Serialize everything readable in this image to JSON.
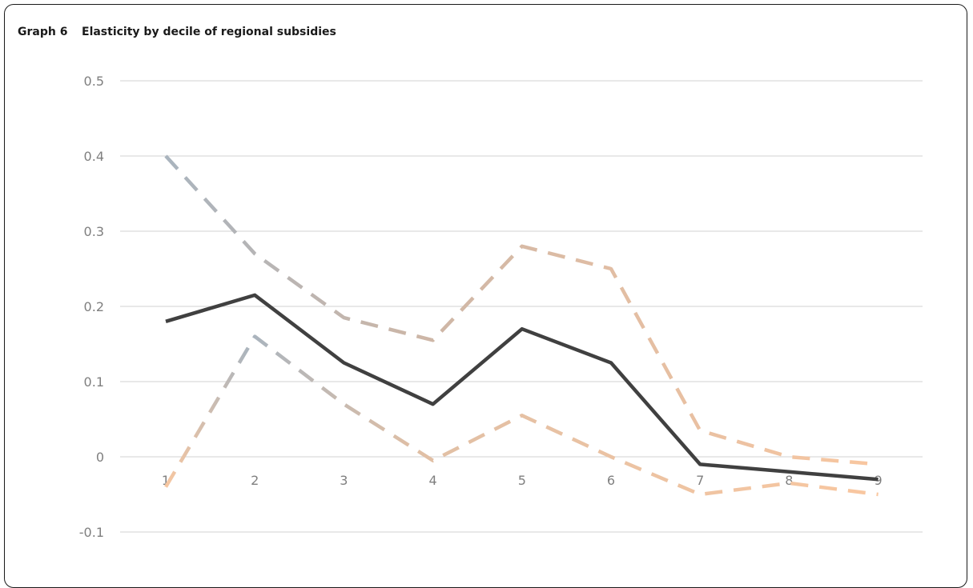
{
  "figure": {
    "number": "Graph 6",
    "title": "Elasticity by decile of regional subsidies"
  },
  "chart_data": {
    "type": "line",
    "x": [
      1,
      2,
      3,
      4,
      5,
      6,
      7,
      8,
      9
    ],
    "ylim": [
      -0.1,
      0.5
    ],
    "yticks": [
      "0.5",
      "0.4",
      "0.3",
      "0.2",
      "0.1",
      "0",
      "-0.1"
    ],
    "xticks": [
      "1",
      "2",
      "3",
      "4",
      "5",
      "6",
      "7",
      "8",
      "9"
    ],
    "grid": true,
    "legend": "none",
    "series": [
      {
        "values": [
          0.18,
          0.215,
          0.125,
          0.07,
          0.17,
          0.125,
          -0.01,
          -0.02,
          -0.03
        ],
        "style": "solid",
        "color": "#404040"
      },
      {
        "values": [
          0.4,
          0.27,
          0.185,
          0.155,
          0.28,
          0.25,
          0.035,
          0.0,
          -0.01
        ],
        "style": "dashed",
        "color_start": "#a9b4be",
        "color_end": "#f9c7a0"
      },
      {
        "values": [
          -0.04,
          0.16,
          0.07,
          -0.005,
          0.055,
          0.0,
          -0.05,
          -0.035,
          -0.05
        ],
        "style": "dashed",
        "color_start": "#f9c7a0",
        "color_end": "#f9c7a0",
        "color_mid": "#a9b4be"
      }
    ]
  }
}
